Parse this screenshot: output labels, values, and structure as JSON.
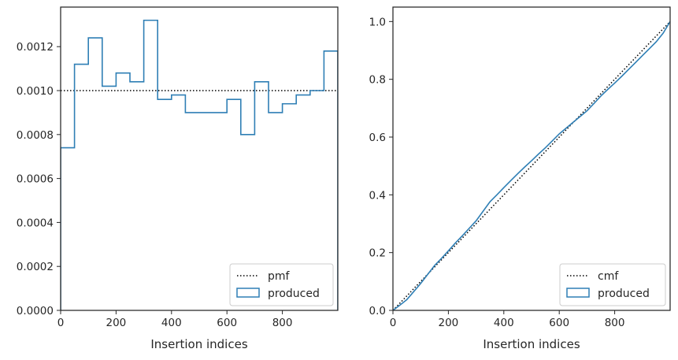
{
  "chart_data": [
    {
      "type": "histogram-step",
      "xlabel": "Insertion indices",
      "ylabel": "",
      "xlim": [
        0,
        1000
      ],
      "ylim": [
        0,
        0.00138
      ],
      "xticks": [
        "0",
        "200",
        "400",
        "600",
        "800"
      ],
      "yticks": [
        "0.0000",
        "0.0002",
        "0.0004",
        "0.0006",
        "0.0008",
        "0.0010",
        "0.0012"
      ],
      "legend_position": "lower-right",
      "reference": {
        "name": "pmf",
        "style": "dotted",
        "color": "#000000",
        "value": 0.001
      },
      "series": [
        {
          "name": "produced",
          "color": "#2f7fb5",
          "bin_edges": [
            0,
            50,
            100,
            150,
            200,
            250,
            300,
            350,
            400,
            450,
            500,
            550,
            600,
            650,
            700,
            750,
            800,
            850,
            900,
            950,
            1000
          ],
          "values": [
            0.00074,
            0.00112,
            0.00124,
            0.00102,
            0.00108,
            0.00104,
            0.00132,
            0.00096,
            0.00098,
            0.0009,
            0.0009,
            0.0009,
            0.00096,
            0.0008,
            0.00104,
            0.0009,
            0.00094,
            0.00098,
            0.001,
            0.00118
          ]
        }
      ]
    },
    {
      "type": "line",
      "xlabel": "Insertion indices",
      "ylabel": "",
      "xlim": [
        0,
        1000
      ],
      "ylim": [
        0,
        1.05
      ],
      "xticks": [
        "0",
        "200",
        "400",
        "600",
        "800"
      ],
      "yticks": [
        "0.0",
        "0.2",
        "0.4",
        "0.6",
        "0.8",
        "1.0"
      ],
      "legend_position": "lower-right",
      "reference": {
        "name": "cmf",
        "style": "dotted",
        "color": "#000000",
        "x": [
          0,
          1000
        ],
        "y": [
          0,
          1
        ]
      },
      "series": [
        {
          "name": "produced",
          "color": "#2f7fb5",
          "x": [
            0,
            25,
            50,
            75,
            100,
            125,
            150,
            175,
            200,
            225,
            250,
            275,
            300,
            325,
            350,
            375,
            400,
            425,
            450,
            475,
            500,
            525,
            550,
            575,
            600,
            625,
            650,
            675,
            700,
            725,
            750,
            775,
            800,
            825,
            850,
            875,
            900,
            925,
            950,
            975,
            1000
          ],
          "y": [
            0,
            0.018,
            0.037,
            0.065,
            0.093,
            0.124,
            0.155,
            0.18,
            0.206,
            0.233,
            0.258,
            0.284,
            0.31,
            0.343,
            0.376,
            0.4,
            0.425,
            0.449,
            0.473,
            0.496,
            0.518,
            0.541,
            0.563,
            0.587,
            0.611,
            0.631,
            0.651,
            0.671,
            0.691,
            0.716,
            0.742,
            0.765,
            0.787,
            0.81,
            0.834,
            0.858,
            0.882,
            0.906,
            0.93,
            0.96,
            1.0
          ]
        }
      ]
    }
  ]
}
